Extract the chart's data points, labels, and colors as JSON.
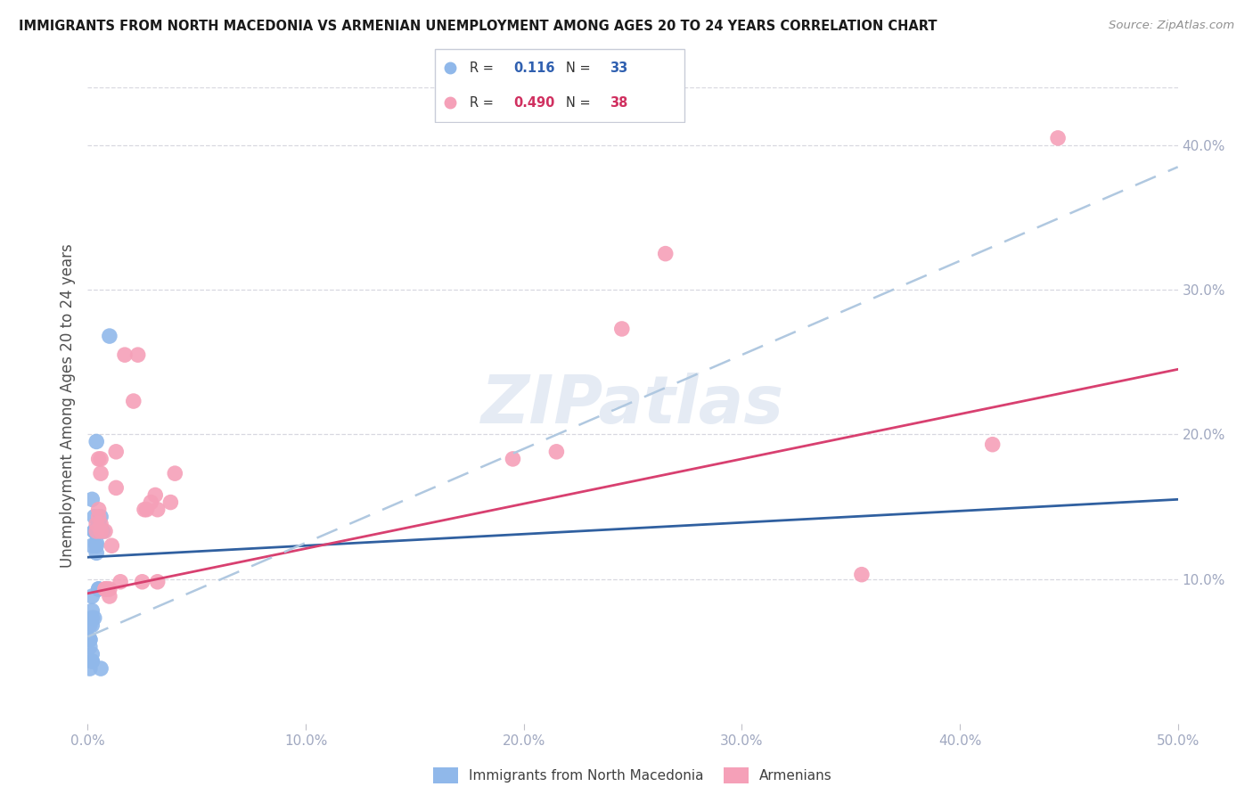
{
  "title": "IMMIGRANTS FROM NORTH MACEDONIA VS ARMENIAN UNEMPLOYMENT AMONG AGES 20 TO 24 YEARS CORRELATION CHART",
  "source": "Source: ZipAtlas.com",
  "ylabel": "Unemployment Among Ages 20 to 24 years",
  "right_ytick_labels": [
    "10.0%",
    "20.0%",
    "30.0%",
    "40.0%"
  ],
  "right_ytick_vals": [
    0.1,
    0.2,
    0.3,
    0.4
  ],
  "xlim": [
    0.0,
    0.5
  ],
  "ylim": [
    0.0,
    0.44
  ],
  "legend_r1_val": "0.116",
  "legend_n1_val": "33",
  "legend_r2_val": "0.490",
  "legend_n2_val": "38",
  "blue_color": "#90b8ea",
  "pink_color": "#f5a0b8",
  "blue_line_color": "#3060a0",
  "pink_line_color": "#d84070",
  "dashed_line_color": "#b0c8e0",
  "blue_scatter_x": [
    0.004,
    0.002,
    0.004,
    0.004,
    0.005,
    0.007,
    0.006,
    0.003,
    0.003,
    0.004,
    0.005,
    0.005,
    0.006,
    0.003,
    0.004,
    0.002,
    0.002,
    0.002,
    0.002,
    0.002,
    0.001,
    0.001,
    0.001,
    0.001,
    0.002,
    0.003,
    0.005,
    0.005,
    0.002,
    0.002,
    0.001,
    0.006,
    0.01
  ],
  "blue_scatter_y": [
    0.195,
    0.155,
    0.125,
    0.118,
    0.138,
    0.133,
    0.133,
    0.143,
    0.133,
    0.133,
    0.133,
    0.138,
    0.143,
    0.133,
    0.123,
    0.123,
    0.088,
    0.078,
    0.073,
    0.068,
    0.068,
    0.058,
    0.058,
    0.053,
    0.048,
    0.073,
    0.093,
    0.093,
    0.043,
    0.043,
    0.038,
    0.038,
    0.268
  ],
  "pink_scatter_x": [
    0.004,
    0.004,
    0.005,
    0.005,
    0.005,
    0.006,
    0.006,
    0.006,
    0.006,
    0.008,
    0.008,
    0.008,
    0.009,
    0.01,
    0.01,
    0.011,
    0.013,
    0.013,
    0.015,
    0.017,
    0.021,
    0.023,
    0.025,
    0.026,
    0.027,
    0.029,
    0.031,
    0.032,
    0.032,
    0.038,
    0.04,
    0.195,
    0.215,
    0.245,
    0.265,
    0.355,
    0.415,
    0.445
  ],
  "pink_scatter_y": [
    0.133,
    0.138,
    0.143,
    0.148,
    0.183,
    0.133,
    0.138,
    0.173,
    0.183,
    0.133,
    0.093,
    0.093,
    0.093,
    0.088,
    0.093,
    0.123,
    0.163,
    0.188,
    0.098,
    0.255,
    0.223,
    0.255,
    0.098,
    0.148,
    0.148,
    0.153,
    0.158,
    0.098,
    0.148,
    0.153,
    0.173,
    0.183,
    0.188,
    0.273,
    0.325,
    0.103,
    0.193,
    0.405
  ],
  "blue_trend_x": [
    0.0,
    0.5
  ],
  "blue_trend_y": [
    0.115,
    0.155
  ],
  "pink_trend_x": [
    0.0,
    0.5
  ],
  "pink_trend_y": [
    0.09,
    0.245
  ],
  "dashed_trend_x": [
    0.0,
    0.5
  ],
  "dashed_trend_y": [
    0.06,
    0.385
  ],
  "watermark": "ZIPatlas",
  "background_color": "#ffffff",
  "xtick_vals": [
    0.0,
    0.1,
    0.2,
    0.3,
    0.4,
    0.5
  ],
  "xtick_labels": [
    "0.0%",
    "10.0%",
    "20.0%",
    "30.0%",
    "40.0%",
    "50.0%"
  ],
  "grid_color": "#d8d8e0",
  "tick_color": "#a0a8c0"
}
